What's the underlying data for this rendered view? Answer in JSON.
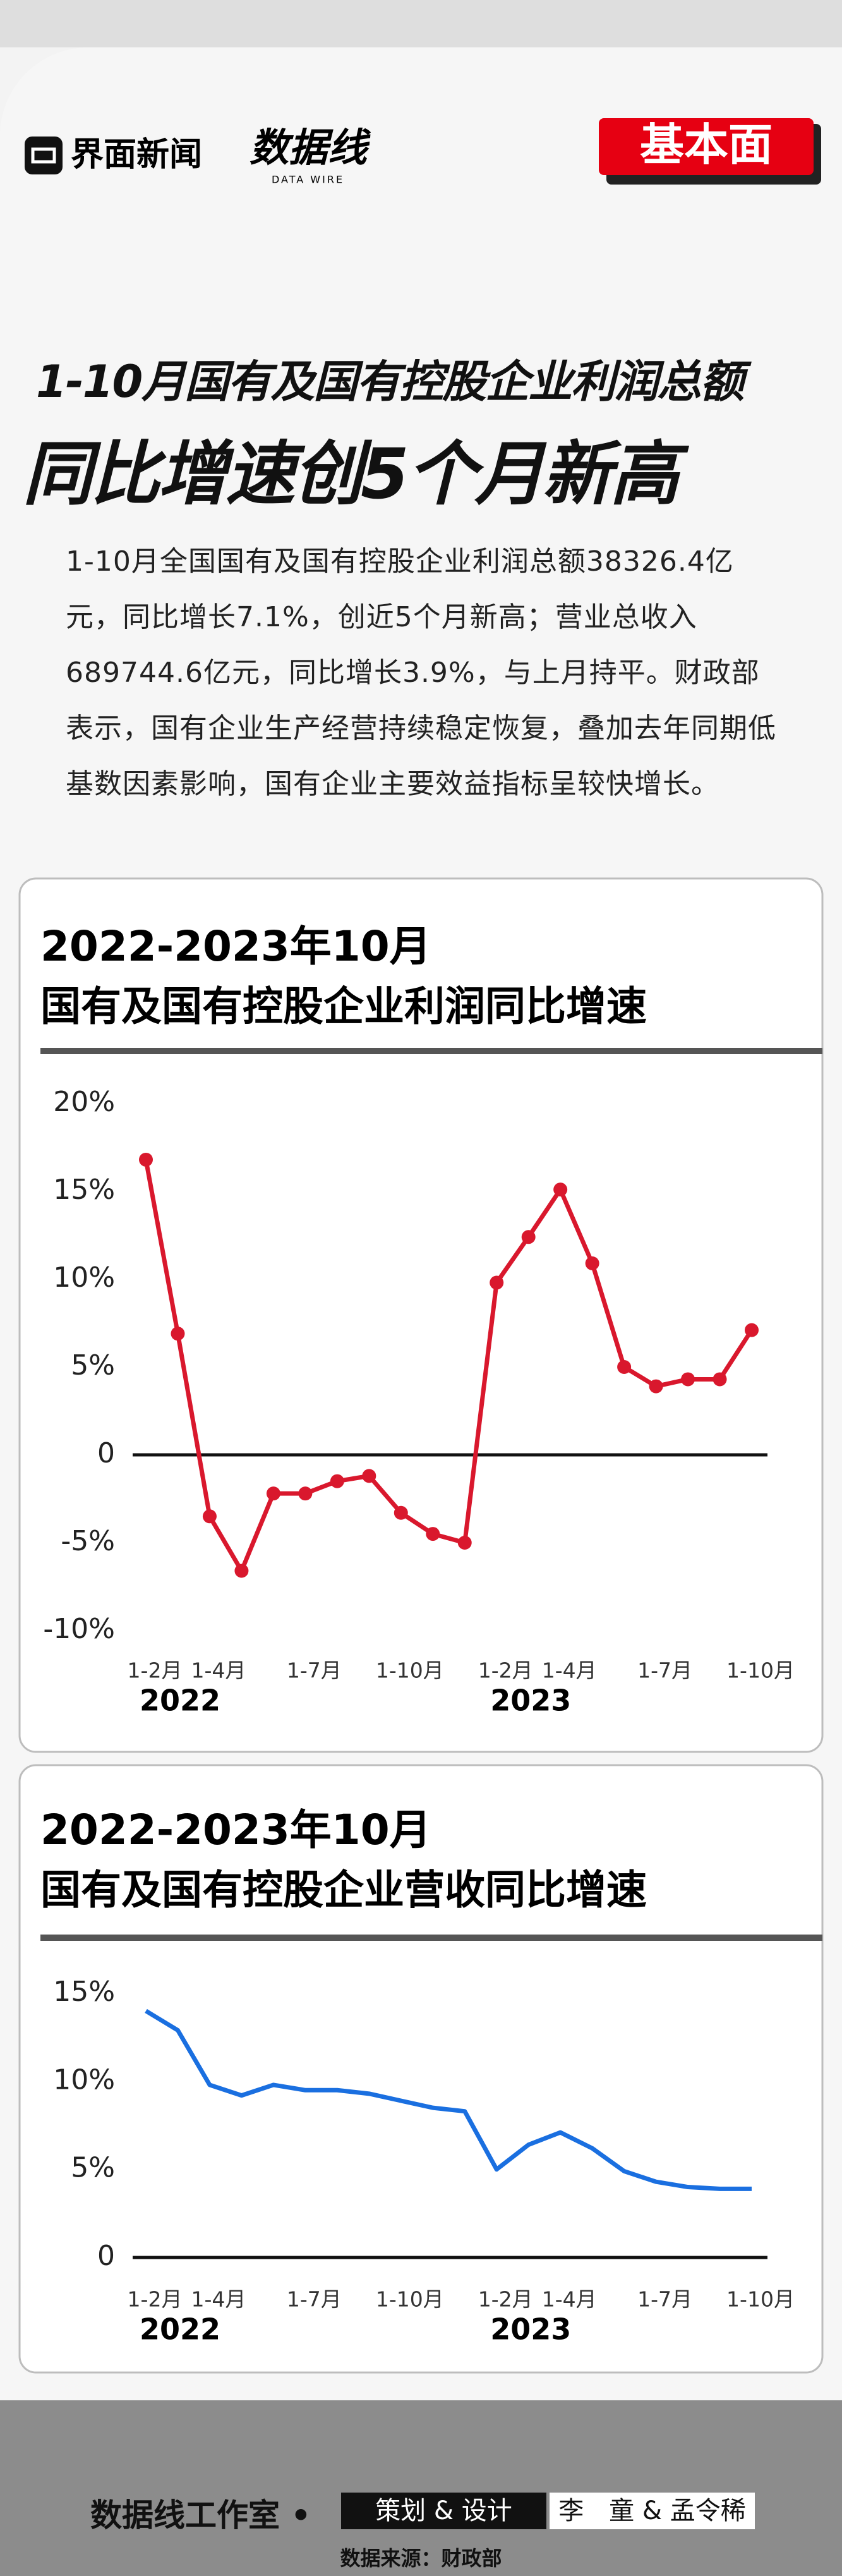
{
  "header": {
    "logo": "界面新闻",
    "logo2": "数据线",
    "logo2_sub": "DATA WIRE",
    "badge": "基本面"
  },
  "headline": {
    "line1": "1-10月国有及国有控股企业利润总额",
    "line2": "同比增速创5个月新高"
  },
  "body": "1-10月全国国有及国有控股企业利润总额38326.4亿元，同比增长7.1%，创近5个月新高；营业总收入689744.6亿元，同比增长3.9%，与上月持平。财政部表示，国有企业生产经营持续稳定恢复，叠加去年同期低基数因素影响，国有企业主要效益指标呈较快增长。",
  "chart_data": [
    {
      "type": "line",
      "title": "2022-2023年10月",
      "subtitle": "国有及国有控股企业利润同比增速",
      "categories": [
        "1-2月",
        null,
        "1-4月",
        null,
        null,
        "1-7月",
        null,
        null,
        "1-10月",
        null,
        null,
        "1-2月",
        null,
        "1-4月",
        null,
        null,
        "1-7月",
        null,
        null,
        "1-10月"
      ],
      "category_groups": [
        "2022",
        null,
        null,
        null,
        null,
        null,
        null,
        null,
        null,
        null,
        null,
        "2023",
        null,
        null,
        null,
        null,
        null,
        null,
        null,
        null
      ],
      "series": [
        {
          "color": "#d9182d",
          "markers": true,
          "values": [
            16.8,
            6.9,
            -3.5,
            -6.6,
            -2.2,
            -2.2,
            -1.5,
            -1.2,
            -3.3,
            -4.5,
            -5.0,
            9.8,
            12.4,
            15.1,
            10.9,
            5.0,
            3.9,
            4.3,
            4.3,
            7.1
          ]
        }
      ],
      "ylim": [
        -10,
        20
      ],
      "yticks": [
        {
          "value": 20,
          "label": "20%"
        },
        {
          "value": 15,
          "label": "15%"
        },
        {
          "value": 10,
          "label": "10%"
        },
        {
          "value": 5,
          "label": "5%"
        },
        0,
        {
          "value": -5,
          "label": "-5%"
        },
        {
          "value": -10,
          "label": "-10%"
        }
      ]
    },
    {
      "type": "line",
      "title": "2022-2023年10月",
      "subtitle": "国有及国有控股企业营收同比增速",
      "categories": [
        "1-2月",
        null,
        "1-4月",
        null,
        null,
        "1-7月",
        null,
        null,
        "1-10月",
        null,
        null,
        "1-2月",
        null,
        "1-4月",
        null,
        null,
        "1-7月",
        null,
        null,
        "1-10月"
      ],
      "category_groups": [
        "2022",
        null,
        null,
        null,
        null,
        null,
        null,
        null,
        null,
        null,
        null,
        "2023",
        null,
        null,
        null,
        null,
        null,
        null,
        null,
        null
      ],
      "series": [
        {
          "color": "#1a6fe0",
          "markers": false,
          "values": [
            14.0,
            12.9,
            9.8,
            9.2,
            9.8,
            9.5,
            9.5,
            9.3,
            8.9,
            8.5,
            8.3,
            5.0,
            6.4,
            7.1,
            6.2,
            4.9,
            4.3,
            4.0,
            3.9,
            3.9
          ]
        }
      ],
      "ylim": [
        0,
        15
      ],
      "yticks": [
        {
          "value": 15,
          "label": "15%"
        },
        {
          "value": 10,
          "label": "10%"
        },
        {
          "value": 5,
          "label": "5%"
        },
        0
      ]
    }
  ],
  "footer": {
    "studio": "数据线工作室 •",
    "role": "策划 & 设计",
    "authors": "李　童 & 孟令稀",
    "source": "数据来源：财政部"
  }
}
